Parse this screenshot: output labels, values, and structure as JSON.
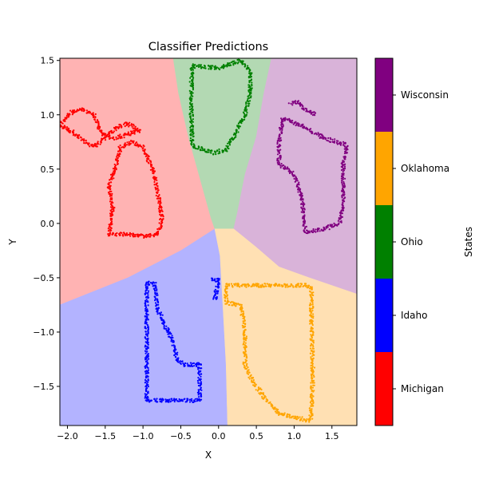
{
  "chart_data": {
    "type": "scatter",
    "title": "Classifier Predictions",
    "xlabel": "X",
    "ylabel": "Y",
    "xlim": [
      -2.1,
      1.83
    ],
    "ylim": [
      -1.86,
      1.52
    ],
    "x_ticks": [
      -2.0,
      -1.5,
      -1.0,
      -0.5,
      0.0,
      0.5,
      1.0,
      1.5
    ],
    "x_tick_labels": [
      "−2.0",
      "−1.5",
      "−1.0",
      "−0.5",
      "0.0",
      "0.5",
      "1.0",
      "1.5"
    ],
    "y_ticks": [
      1.5,
      1.0,
      0.5,
      0.0,
      -0.5,
      -1.0,
      -1.5
    ],
    "y_tick_labels": [
      "1.5",
      "1.0",
      "0.5",
      "0.0",
      "−0.5",
      "−1.0",
      "−1.5"
    ],
    "grid": false,
    "colorbar": {
      "label": "States",
      "classes": [
        {
          "name": "Michigan",
          "color": "#ff0000"
        },
        {
          "name": "Idaho",
          "color": "#0000ff"
        },
        {
          "name": "Ohio",
          "color": "#008000"
        },
        {
          "name": "Oklahoma",
          "color": "#ffa500"
        },
        {
          "name": "Wisconsin",
          "color": "#800080"
        }
      ]
    },
    "regions": [
      {
        "class": "Michigan",
        "color": "#ffb3b3",
        "polygon": [
          [
            -2.1,
            1.52
          ],
          [
            -0.6,
            1.52
          ],
          [
            -0.53,
            1.2
          ],
          [
            -0.4,
            0.8
          ],
          [
            -0.2,
            0.3
          ],
          [
            -0.1,
            0.05
          ],
          [
            -0.05,
            -0.05
          ],
          [
            -0.5,
            -0.25
          ],
          [
            -1.2,
            -0.5
          ],
          [
            -2.1,
            -0.75
          ]
        ]
      },
      {
        "class": "Ohio",
        "color": "#b3d9b3",
        "polygon": [
          [
            -0.6,
            1.52
          ],
          [
            0.7,
            1.52
          ],
          [
            0.6,
            1.2
          ],
          [
            0.5,
            0.8
          ],
          [
            0.35,
            0.45
          ],
          [
            0.25,
            0.1
          ],
          [
            0.2,
            -0.05
          ],
          [
            -0.05,
            -0.05
          ],
          [
            -0.1,
            0.05
          ],
          [
            -0.2,
            0.3
          ],
          [
            -0.4,
            0.8
          ],
          [
            -0.53,
            1.2
          ]
        ]
      },
      {
        "class": "Wisconsin",
        "color": "#d9b3d9",
        "polygon": [
          [
            0.7,
            1.52
          ],
          [
            1.83,
            1.52
          ],
          [
            1.83,
            -0.65
          ],
          [
            1.2,
            -0.5
          ],
          [
            0.8,
            -0.4
          ],
          [
            0.5,
            -0.22
          ],
          [
            0.2,
            -0.05
          ],
          [
            0.25,
            0.1
          ],
          [
            0.35,
            0.45
          ],
          [
            0.5,
            0.8
          ],
          [
            0.6,
            1.2
          ]
        ]
      },
      {
        "class": "Idaho",
        "color": "#b3b3ff",
        "polygon": [
          [
            -2.1,
            -0.75
          ],
          [
            -1.2,
            -0.5
          ],
          [
            -0.5,
            -0.25
          ],
          [
            -0.05,
            -0.05
          ],
          [
            0.02,
            -0.3
          ],
          [
            0.06,
            -0.8
          ],
          [
            0.1,
            -1.3
          ],
          [
            0.12,
            -1.86
          ],
          [
            -2.1,
            -1.86
          ]
        ]
      },
      {
        "class": "Oklahoma",
        "color": "#ffe0b3",
        "polygon": [
          [
            -0.05,
            -0.05
          ],
          [
            0.2,
            -0.05
          ],
          [
            0.5,
            -0.22
          ],
          [
            0.8,
            -0.4
          ],
          [
            1.2,
            -0.5
          ],
          [
            1.83,
            -0.65
          ],
          [
            1.83,
            -1.86
          ],
          [
            0.12,
            -1.86
          ],
          [
            0.1,
            -1.3
          ],
          [
            0.06,
            -0.8
          ],
          [
            0.02,
            -0.3
          ]
        ]
      }
    ],
    "series": [
      {
        "name": "Michigan",
        "color": "#ff0000",
        "outlines": [
          [
            [
              -1.45,
              -0.1
            ],
            [
              -1.4,
              0.15
            ],
            [
              -1.45,
              0.35
            ],
            [
              -1.35,
              0.55
            ],
            [
              -1.3,
              0.7
            ],
            [
              -1.15,
              0.75
            ],
            [
              -1.0,
              0.7
            ],
            [
              -0.85,
              0.45
            ],
            [
              -0.8,
              0.25
            ],
            [
              -0.75,
              0.05
            ],
            [
              -0.8,
              -0.1
            ],
            [
              -1.0,
              -0.12
            ],
            [
              -1.2,
              -0.1
            ],
            [
              -1.45,
              -0.1
            ]
          ],
          [
            [
              -2.1,
              0.9
            ],
            [
              -1.95,
              0.85
            ],
            [
              -1.7,
              0.72
            ],
            [
              -1.6,
              0.72
            ],
            [
              -1.5,
              0.8
            ],
            [
              -1.35,
              0.88
            ],
            [
              -1.2,
              0.92
            ],
            [
              -1.05,
              0.85
            ],
            [
              -1.2,
              0.82
            ],
            [
              -1.4,
              0.78
            ],
            [
              -1.55,
              0.82
            ],
            [
              -1.65,
              1.0
            ],
            [
              -1.8,
              1.05
            ],
            [
              -1.95,
              1.02
            ],
            [
              -2.1,
              0.9
            ]
          ]
        ]
      },
      {
        "name": "Ohio",
        "color": "#008000",
        "outlines": [
          [
            [
              -0.35,
              1.45
            ],
            [
              0.0,
              1.43
            ],
            [
              0.3,
              1.5
            ],
            [
              0.42,
              1.4
            ],
            [
              0.42,
              1.2
            ],
            [
              0.35,
              1.0
            ],
            [
              0.2,
              0.8
            ],
            [
              0.1,
              0.68
            ],
            [
              -0.05,
              0.65
            ],
            [
              -0.2,
              0.68
            ],
            [
              -0.35,
              0.72
            ],
            [
              -0.36,
              1.0
            ],
            [
              -0.36,
              1.3
            ],
            [
              -0.35,
              1.45
            ]
          ]
        ]
      },
      {
        "name": "Wisconsin",
        "color": "#800080",
        "outlines": [
          [
            [
              0.85,
              0.97
            ],
            [
              1.1,
              0.9
            ],
            [
              1.35,
              0.8
            ],
            [
              1.55,
              0.75
            ],
            [
              1.7,
              0.72
            ],
            [
              1.65,
              0.55
            ],
            [
              1.65,
              0.2
            ],
            [
              1.6,
              -0.0
            ],
            [
              1.4,
              -0.05
            ],
            [
              1.15,
              -0.08
            ],
            [
              1.1,
              0.25
            ],
            [
              1.0,
              0.45
            ],
            [
              0.8,
              0.55
            ],
            [
              0.8,
              0.75
            ],
            [
              0.85,
              0.97
            ]
          ],
          [
            [
              0.95,
              1.1
            ],
            [
              1.05,
              1.12
            ],
            [
              1.15,
              1.05
            ],
            [
              1.3,
              1.0
            ]
          ]
        ]
      },
      {
        "name": "Idaho",
        "color": "#0000ff",
        "outlines": [
          [
            [
              -0.95,
              -0.55
            ],
            [
              -0.85,
              -0.55
            ],
            [
              -0.8,
              -0.8
            ],
            [
              -0.7,
              -0.95
            ],
            [
              -0.6,
              -1.1
            ],
            [
              -0.55,
              -1.25
            ],
            [
              -0.45,
              -1.3
            ],
            [
              -0.25,
              -1.3
            ],
            [
              -0.25,
              -1.5
            ],
            [
              -0.25,
              -1.63
            ],
            [
              -0.5,
              -1.63
            ],
            [
              -0.7,
              -1.63
            ],
            [
              -0.95,
              -1.63
            ],
            [
              -0.95,
              -1.3
            ],
            [
              -0.95,
              -1.0
            ],
            [
              -0.95,
              -0.55
            ]
          ],
          [
            [
              -0.1,
              -0.52
            ],
            [
              0.0,
              -0.52
            ],
            [
              -0.05,
              -0.7
            ]
          ]
        ]
      },
      {
        "name": "Oklahoma",
        "color": "#ffa500",
        "outlines": [
          [
            [
              0.1,
              -0.57
            ],
            [
              0.5,
              -0.57
            ],
            [
              1.15,
              -0.57
            ],
            [
              1.23,
              -0.6
            ],
            [
              1.23,
              -1.0
            ],
            [
              1.25,
              -1.4
            ],
            [
              1.22,
              -1.82
            ],
            [
              1.0,
              -1.78
            ],
            [
              0.8,
              -1.75
            ],
            [
              0.6,
              -1.6
            ],
            [
              0.45,
              -1.45
            ],
            [
              0.35,
              -1.3
            ],
            [
              0.35,
              -1.0
            ],
            [
              0.3,
              -0.75
            ],
            [
              0.1,
              -0.73
            ],
            [
              0.1,
              -0.57
            ]
          ]
        ]
      }
    ]
  }
}
